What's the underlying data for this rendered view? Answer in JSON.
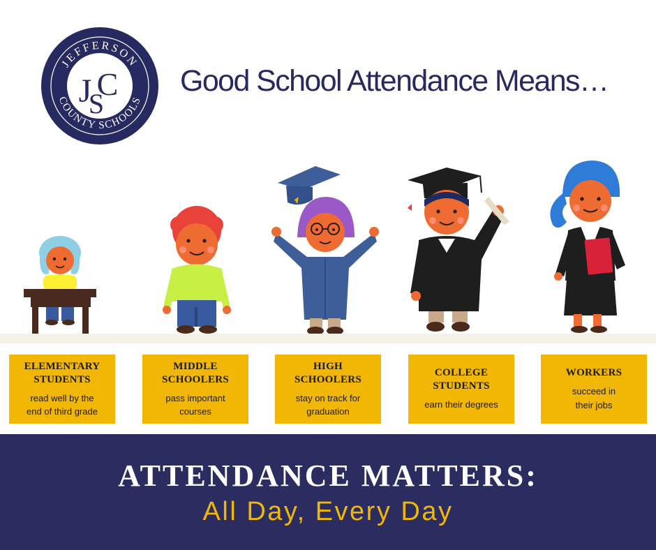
{
  "logo": {
    "ring_top": "JEFFERSON",
    "ring_bottom": "COUNTY SCHOOLS",
    "monogram": [
      "J",
      "C",
      "S"
    ]
  },
  "headline": "Good School Attendance Means…",
  "stages": [
    {
      "title_line1": "ELEMENTARY",
      "title_line2": "STUDENTS",
      "desc_line1": "read well by the",
      "desc_line2": "end of third grade"
    },
    {
      "title_line1": "MIDDLE",
      "title_line2": "SCHOOLERS",
      "desc_line1": "pass important",
      "desc_line2": "courses"
    },
    {
      "title_line1": "HIGH",
      "title_line2": "SCHOOLERS",
      "desc_line1": "stay on track for",
      "desc_line2": "graduation"
    },
    {
      "title_line1": "COLLEGE",
      "title_line2": "STUDENTS",
      "desc_line1": "earn their degrees",
      "desc_line2": ""
    },
    {
      "title_line1": "WORKERS",
      "title_line2": "",
      "desc_line1": "succeed in",
      "desc_line2": "their jobs"
    }
  ],
  "banner": {
    "title": "ATTENDANCE MATTERS:",
    "subtitle": "All Day, Every Day"
  },
  "colors": {
    "navy": "#2b2c60",
    "gold": "#f2b705",
    "skin": "#ee6b32"
  }
}
